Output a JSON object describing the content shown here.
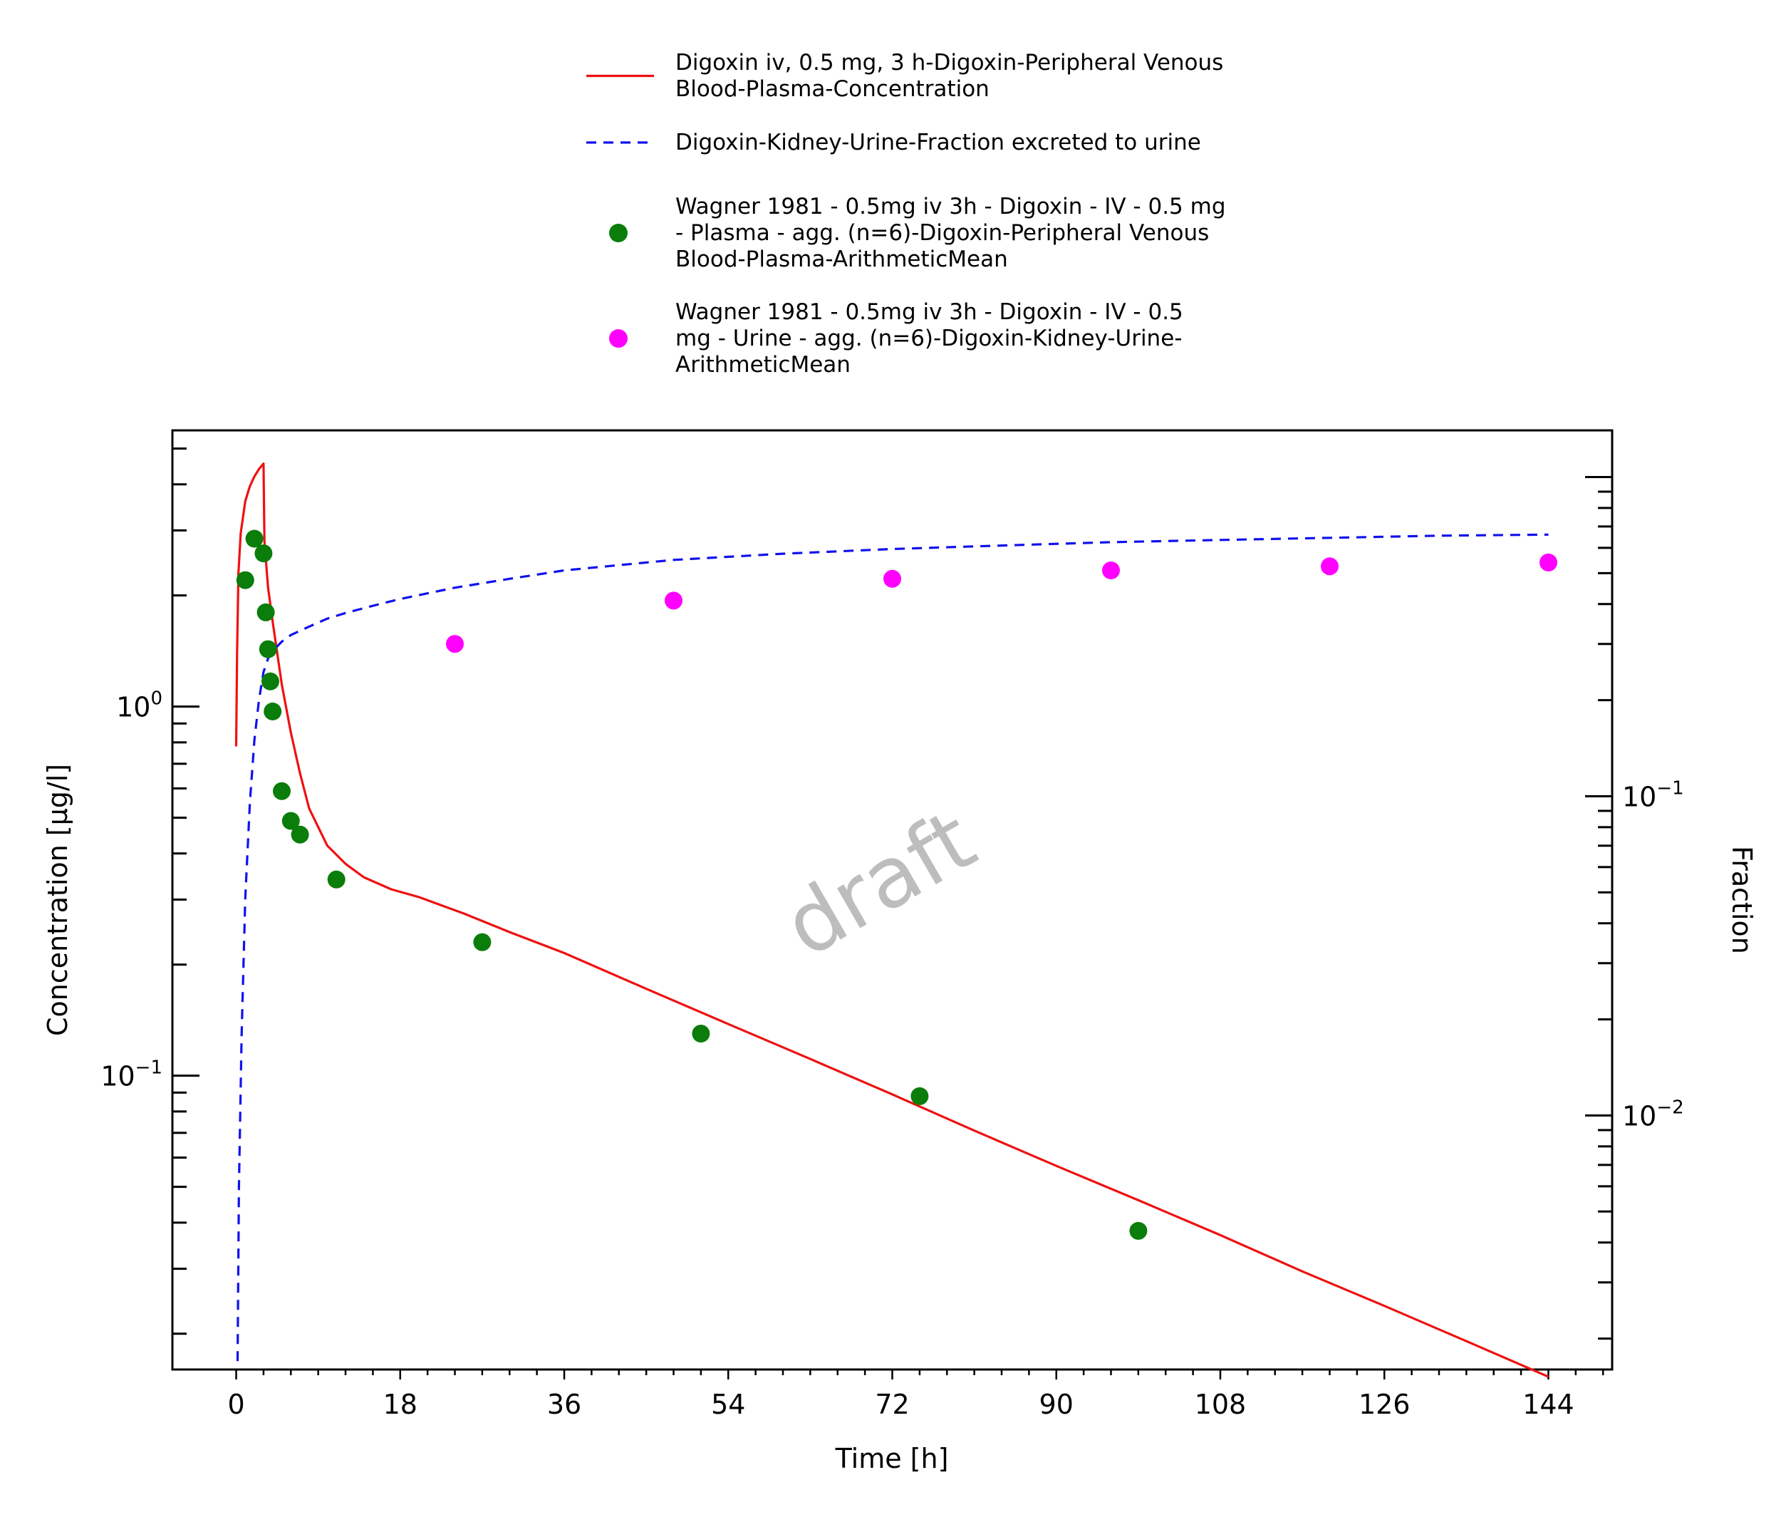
{
  "chart_data": {
    "type": "line",
    "xlabel": "Time [h]",
    "ylabel": "Concentration [µg/l]",
    "y2label": "Fraction",
    "watermark": "draft",
    "xlim": [
      -7,
      151
    ],
    "x_ticks": [
      0,
      18,
      36,
      54,
      72,
      90,
      108,
      126,
      144
    ],
    "ylim": [
      0.016,
      5.6
    ],
    "yscale": "log",
    "y_tick_labels": [
      {
        "value": 1,
        "base": "10",
        "exp": "0"
      },
      {
        "value": 0.1,
        "base": "10",
        "exp": "−1"
      }
    ],
    "y2lim": [
      0.0016,
      1.4
    ],
    "y2scale": "log",
    "y2_tick_labels": [
      {
        "value": 0.1,
        "base": "10",
        "exp": "−1"
      },
      {
        "value": 0.01,
        "base": "10",
        "exp": "−2"
      }
    ],
    "grid": false,
    "legend_position": "top-center",
    "legend": [
      {
        "key": "sim_plasma",
        "label": [
          "Digoxin iv, 0.5 mg, 3 h-Digoxin-Peripheral Venous",
          "Blood-Plasma-Concentration"
        ]
      },
      {
        "key": "sim_urine",
        "label": [
          "Digoxin-Kidney-Urine-Fraction excreted to urine"
        ]
      },
      {
        "key": "obs_plasma",
        "label": [
          "Wagner 1981 - 0.5mg iv 3h - Digoxin - IV - 0.5 mg",
          "- Plasma - agg. (n=6)-Digoxin-Peripheral Venous",
          "Blood-Plasma-ArithmeticMean"
        ]
      },
      {
        "key": "obs_urine",
        "label": [
          "Wagner 1981 - 0.5mg iv 3h - Digoxin - IV - 0.5",
          "mg - Urine - agg. (n=6)-Digoxin-Kidney-Urine-",
          "ArithmeticMean"
        ]
      }
    ],
    "series": [
      {
        "key": "sim_plasma",
        "kind": "line",
        "axis": "left",
        "color": "#ee1111",
        "dash": "solid",
        "x": [
          0,
          0.1,
          0.25,
          0.5,
          1,
          1.5,
          2,
          2.5,
          3,
          3.1,
          3.5,
          4,
          5,
          6,
          7,
          8,
          10,
          12,
          14,
          17,
          20,
          25,
          30,
          36,
          45,
          54,
          63,
          72,
          81,
          90,
          99,
          108,
          117,
          126,
          135,
          144
        ],
        "y": [
          0.78,
          1.4,
          2.3,
          2.95,
          3.6,
          3.95,
          4.2,
          4.4,
          4.55,
          2.8,
          2.1,
          1.7,
          1.15,
          0.85,
          0.66,
          0.53,
          0.42,
          0.375,
          0.345,
          0.32,
          0.305,
          0.275,
          0.245,
          0.215,
          0.172,
          0.138,
          0.111,
          0.089,
          0.071,
          0.057,
          0.046,
          0.037,
          0.0295,
          0.0238,
          0.0191,
          0.0153
        ]
      },
      {
        "key": "sim_urine",
        "kind": "line",
        "axis": "right",
        "color": "#1111ee",
        "dash": "dashed",
        "x": [
          0.15,
          0.3,
          0.6,
          1,
          1.5,
          2,
          2.5,
          3,
          3.5,
          4,
          5,
          6,
          8,
          10,
          12,
          15,
          18,
          24,
          30,
          36,
          48,
          60,
          72,
          84,
          96,
          108,
          120,
          132,
          144
        ],
        "y": [
          0.0017,
          0.006,
          0.018,
          0.048,
          0.095,
          0.15,
          0.2,
          0.245,
          0.27,
          0.285,
          0.305,
          0.32,
          0.34,
          0.36,
          0.375,
          0.395,
          0.415,
          0.45,
          0.48,
          0.51,
          0.55,
          0.575,
          0.595,
          0.61,
          0.625,
          0.635,
          0.645,
          0.655,
          0.66
        ]
      },
      {
        "key": "obs_plasma",
        "kind": "scatter",
        "axis": "left",
        "color": "#0a7d0a",
        "x": [
          1,
          2,
          3,
          3.25,
          3.5,
          3.75,
          4,
          5,
          6,
          7,
          11,
          27,
          51,
          75,
          99
        ],
        "y": [
          2.2,
          2.85,
          2.6,
          1.8,
          1.43,
          1.17,
          0.97,
          0.59,
          0.49,
          0.45,
          0.34,
          0.23,
          0.13,
          0.088,
          0.038
        ]
      },
      {
        "key": "obs_urine",
        "kind": "scatter",
        "axis": "right",
        "color": "#ff00ff",
        "x": [
          24,
          48,
          72,
          96,
          120,
          144
        ],
        "y": [
          0.3,
          0.41,
          0.48,
          0.51,
          0.525,
          0.54
        ]
      }
    ]
  }
}
